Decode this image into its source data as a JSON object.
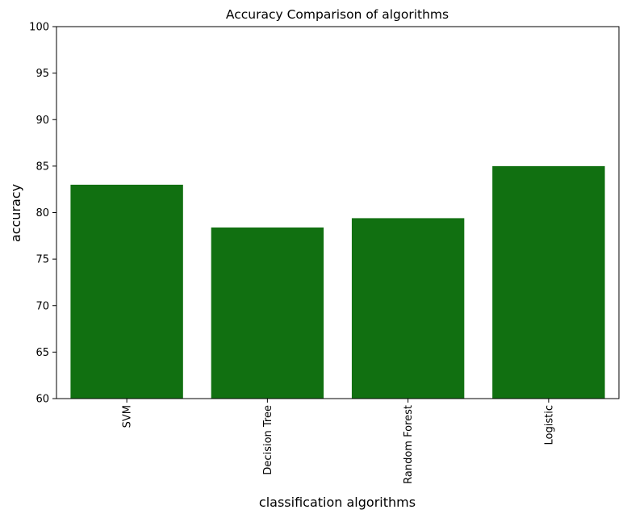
{
  "chart_data": {
    "type": "bar",
    "title": "Accuracy Comparison of algorithms",
    "xlabel": "classification algorithms",
    "ylabel": "accuracy",
    "categories": [
      "SVM",
      "Decision Tree",
      "Random Forest",
      "Logistic"
    ],
    "values": [
      83.0,
      78.4,
      79.4,
      85.0
    ],
    "ylim": [
      60,
      100
    ],
    "yticks": [
      60,
      65,
      70,
      75,
      80,
      85,
      90,
      95,
      100
    ],
    "bar_color": "#117011",
    "grid": false,
    "legend": "none"
  }
}
